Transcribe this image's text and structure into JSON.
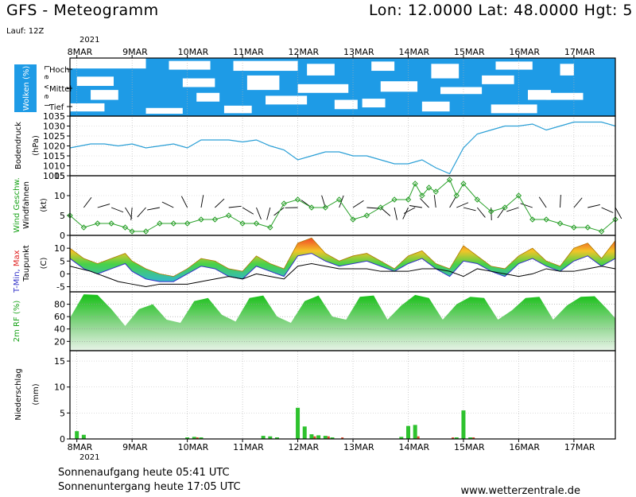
{
  "header": {
    "title": "GFS - Meteogramm",
    "coords": "Lon: 12.0000 Lat: 48.0000 Hgt: 5",
    "run": "Lauf: 12Z",
    "year": "2021"
  },
  "footer": {
    "sunrise": "Sonnenaufgang heute 05:41 UTC",
    "sunset": "Sonnenuntergang heute 17:05 UTC",
    "website": "www.wetterzentrale.de"
  },
  "colors": {
    "cloud": "#1e9be6",
    "pressure_line": "#2a9fd6",
    "wind_speed": "#2aa02a",
    "rh_fill": "#21c421",
    "precip_bar": "#2ec22e",
    "precip_bar_alt": "#d94a2a",
    "temp_max": "#f2c21c",
    "temp_min": "#3030c8",
    "temp_fill": "#3fcf3f"
  },
  "chart_data": {
    "type": "line",
    "x_dates": [
      "8MAR",
      "9MAR",
      "10MAR",
      "11MAR",
      "12MAR",
      "13MAR",
      "14MAR",
      "15MAR",
      "16MAR",
      "17MAR"
    ],
    "x_hours": [
      0,
      24,
      48,
      72,
      96,
      120,
      144,
      168,
      192,
      216
    ],
    "x_range_hours": [
      -3,
      234
    ],
    "panels": [
      {
        "id": "clouds",
        "ylabel": "Wolken (%)",
        "ylabel2": "L e v e l",
        "levels": [
          "Hoch",
          "Mittel",
          "Tief"
        ]
      },
      {
        "id": "pressure",
        "ylabel": "Bodendruck",
        "unit": "(hPa)",
        "ylim": [
          1005,
          1035
        ],
        "yticks": [
          1005,
          1010,
          1015,
          1020,
          1025,
          1030,
          1035
        ],
        "series": [
          {
            "x": [
              -3,
              6,
              12,
              18,
              24,
              30,
              36,
              42,
              48,
              54,
              60,
              66,
              72,
              78,
              84,
              90,
              96,
              102,
              108,
              114,
              120,
              126,
              132,
              138,
              144,
              150,
              156,
              162,
              168,
              174,
              180,
              186,
              192,
              198,
              204,
              210,
              216,
              222,
              228,
              234
            ],
            "values": [
              1019,
              1021,
              1021,
              1020,
              1021,
              1019,
              1020,
              1021,
              1019,
              1023,
              1023,
              1023,
              1022,
              1023,
              1020,
              1018,
              1013,
              1015,
              1017,
              1017,
              1015,
              1015,
              1013,
              1011,
              1011,
              1013,
              1009,
              1006,
              1019,
              1026,
              1028,
              1030,
              1030,
              1031,
              1028,
              1030,
              1032,
              1032,
              1032,
              1030
            ]
          }
        ]
      },
      {
        "id": "wind",
        "ylabel": "Wind Geschw.",
        "ylabel2": "Windfahnen",
        "unit": "(kt)",
        "ylim": [
          0,
          15
        ],
        "yticks": [
          0,
          5,
          10,
          15
        ],
        "series": [
          {
            "name": "Wind Geschw.",
            "x": [
              -3,
              3,
              9,
              15,
              21,
              24,
              30,
              36,
              42,
              48,
              54,
              60,
              66,
              72,
              78,
              84,
              90,
              96,
              102,
              108,
              114,
              120,
              126,
              132,
              138,
              144,
              147,
              150,
              153,
              156,
              162,
              165,
              168,
              174,
              180,
              186,
              192,
              198,
              204,
              210,
              216,
              222,
              228,
              234
            ],
            "values": [
              5,
              2,
              3,
              3,
              2,
              1,
              1,
              3,
              3,
              3,
              4,
              4,
              5,
              3,
              3,
              2,
              8,
              9,
              7,
              7,
              9,
              4,
              5,
              7,
              9,
              9,
              13,
              10,
              12,
              11,
              14,
              10,
              13,
              9,
              6,
              7,
              10,
              4,
              4,
              3,
              2,
              2,
              1,
              4
            ]
          }
        ]
      },
      {
        "id": "temperature",
        "ylabel": "T-Min, Max",
        "ylabel2": "Taupunkt",
        "unit": "(C)",
        "ylim": [
          -7,
          15
        ],
        "yticks": [
          -5,
          0,
          5,
          10
        ],
        "series": [
          {
            "name": "T-Max",
            "x": [
              -3,
              3,
              9,
              15,
              21,
              24,
              30,
              36,
              42,
              48,
              54,
              60,
              66,
              72,
              78,
              84,
              90,
              96,
              102,
              108,
              114,
              120,
              126,
              132,
              138,
              144,
              150,
              156,
              162,
              168,
              174,
              180,
              186,
              192,
              198,
              204,
              210,
              216,
              222,
              228,
              234
            ],
            "values": [
              10,
              6,
              4,
              6,
              8,
              5,
              2,
              0,
              -1,
              2,
              6,
              5,
              2,
              1,
              7,
              4,
              2,
              12,
              14,
              8,
              5,
              7,
              8,
              5,
              2,
              7,
              9,
              4,
              2,
              11,
              7,
              3,
              2,
              7,
              10,
              5,
              3,
              10,
              12,
              6,
              13
            ]
          },
          {
            "name": "T-Min",
            "x": [
              -3,
              3,
              9,
              15,
              21,
              24,
              30,
              36,
              42,
              48,
              54,
              60,
              66,
              72,
              78,
              84,
              90,
              96,
              102,
              108,
              114,
              120,
              126,
              132,
              138,
              144,
              150,
              156,
              162,
              168,
              174,
              180,
              186,
              192,
              198,
              204,
              210,
              216,
              222,
              228,
              234
            ],
            "values": [
              6,
              2,
              0,
              2,
              4,
              1,
              -2,
              -3,
              -3,
              0,
              3,
              2,
              -1,
              -2,
              3,
              1,
              -1,
              7,
              8,
              5,
              3,
              4,
              5,
              3,
              1,
              4,
              6,
              2,
              -1,
              5,
              4,
              1,
              -1,
              4,
              6,
              3,
              1,
              5,
              7,
              3,
              6
            ]
          },
          {
            "name": "Taupunkt",
            "x": [
              -3,
              6,
              12,
              18,
              24,
              30,
              36,
              42,
              48,
              54,
              60,
              66,
              72,
              78,
              84,
              90,
              96,
              102,
              108,
              114,
              120,
              126,
              132,
              138,
              144,
              150,
              156,
              162,
              168,
              174,
              180,
              186,
              192,
              198,
              204,
              210,
              216,
              222,
              228,
              234
            ],
            "values": [
              3,
              1,
              -1,
              -3,
              -4,
              -5,
              -4,
              -4,
              -4,
              -3,
              -2,
              -1,
              -2,
              0,
              -1,
              -2,
              3,
              4,
              3,
              2,
              2,
              2,
              1,
              1,
              1,
              2,
              2,
              1,
              -1,
              2,
              1,
              0,
              -1,
              0,
              2,
              1,
              1,
              2,
              3,
              2
            ]
          }
        ]
      },
      {
        "id": "humidity",
        "ylabel": "2m RF (%)",
        "ylim": [
          5,
          100
        ],
        "yticks": [
          20,
          40,
          60,
          80
        ],
        "series": [
          {
            "name": "2m RF",
            "x": [
              -3,
              3,
              9,
              15,
              21,
              27,
              33,
              39,
              45,
              51,
              57,
              63,
              69,
              75,
              81,
              87,
              93,
              99,
              105,
              111,
              117,
              123,
              129,
              135,
              141,
              147,
              153,
              159,
              165,
              171,
              177,
              183,
              189,
              195,
              201,
              207,
              213,
              219,
              225,
              231,
              234
            ],
            "values": [
              58,
              96,
              95,
              72,
              45,
              72,
              80,
              55,
              50,
              85,
              90,
              63,
              52,
              90,
              94,
              60,
              50,
              85,
              94,
              60,
              55,
              92,
              94,
              55,
              78,
              95,
              90,
              55,
              80,
              92,
              90,
              55,
              70,
              90,
              92,
              55,
              78,
              92,
              93,
              70,
              57
            ]
          }
        ]
      },
      {
        "id": "precip",
        "ylabel": "Niederschlag",
        "unit": "(mm)",
        "ylim": [
          0,
          17
        ],
        "yticks": [
          0,
          5,
          10,
          15
        ],
        "series": [
          {
            "name": "Niederschlag",
            "x": [
              0,
              3,
              48,
              51,
              54,
              81,
              84,
              87,
              96,
              99,
              102,
              105,
              108,
              111,
              141,
              144,
              147,
              165,
              168,
              171
            ],
            "values": [
              1.5,
              0.8,
              0.3,
              0.4,
              0.3,
              0.6,
              0.5,
              0.3,
              6.0,
              2.4,
              0.9,
              0.7,
              0.6,
              0.3,
              0.4,
              2.5,
              2.7,
              0.3,
              5.5,
              0.3
            ]
          },
          {
            "name": "Niederschlag (konvektiv)",
            "x": [
              51,
              102,
              108,
              114,
              147,
              162,
              171
            ],
            "values": [
              0.3,
              0.5,
              0.5,
              0.3,
              0.5,
              0.3,
              0.3
            ]
          }
        ]
      }
    ]
  }
}
